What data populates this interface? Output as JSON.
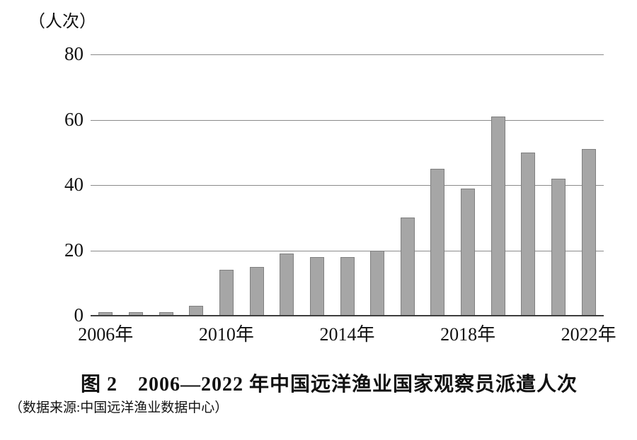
{
  "figure": {
    "unit_label": "（人次）",
    "title": "图 2　2006—2022 年中国远洋渔业国家观察员派遣人次",
    "source": "（数据来源:中国远洋渔业数据中心）"
  },
  "chart_data": {
    "type": "bar",
    "title": "图 2 2006—2022 年中国远洋渔业国家观察员派遣人次",
    "ylabel": "（人次）",
    "unit": "人次",
    "categories": [
      "2006",
      "2007",
      "2008",
      "2009",
      "2010",
      "2011",
      "2012",
      "2013",
      "2014",
      "2015",
      "2016",
      "2017",
      "2018",
      "2019",
      "2020",
      "2021",
      "2022"
    ],
    "values": [
      1,
      1,
      1,
      3,
      14,
      15,
      19,
      18,
      18,
      20,
      30,
      45,
      39,
      61,
      50,
      42,
      51
    ],
    "ylim": [
      0,
      80
    ],
    "yticks": [
      0,
      20,
      40,
      60,
      80
    ],
    "xtick_labels": [
      "2006年",
      "2010年",
      "2014年",
      "2018年",
      "2022年"
    ],
    "xtick_indices": [
      0,
      4,
      8,
      12,
      16
    ],
    "grid": true,
    "legend": "none",
    "source": "（数据来源:中国远洋渔业数据中心）",
    "colors": {
      "bar_fill": "#a6a6a6",
      "bar_border": "#7f7f7f",
      "gridline": "#8a8a8a",
      "baseline": "#3d3d3d",
      "text": "#111111"
    }
  }
}
